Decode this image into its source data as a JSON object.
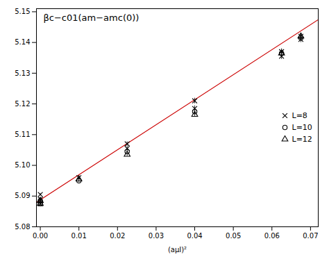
{
  "chart_data": {
    "type": "scatter",
    "title": "βc−c01(am−amc(0))",
    "xlabel": "(aμI)²",
    "xlim": [
      -0.001,
      0.072
    ],
    "ylim": [
      5.08,
      5.151
    ],
    "xticks": [
      {
        "value": 0.0,
        "label": "0.00"
      },
      0.01,
      0.02,
      0.03,
      0.04,
      0.05,
      0.06,
      0.07
    ],
    "yticks": [
      5.08,
      5.09,
      {
        "value": 5.1,
        "label": "5.10"
      },
      5.11,
      5.12,
      5.13,
      5.14,
      5.15
    ],
    "legend": "right",
    "series": [
      {
        "type": "line",
        "color": "#cc0000",
        "x": [
          -0.001,
          0.072
        ],
        "values": [
          5.0879857,
          5.1474296
        ]
      },
      {
        "name": "L=8",
        "type": "scatter",
        "marker": "x",
        "color": "black",
        "x": [
          0.0,
          0.0,
          0.0,
          0.01,
          0.0225,
          0.0225,
          0.04,
          0.04,
          0.0625,
          0.0625,
          0.0675,
          0.0675
        ],
        "values": [
          5.0905,
          5.089,
          5.0875,
          5.096,
          5.107,
          5.1055,
          5.121,
          5.1185,
          5.137,
          5.1355,
          5.142,
          5.141
        ],
        "errors": [
          0.0004,
          0.0004,
          0.0004,
          0.0007,
          0.0007,
          0.0007,
          0.0009,
          0.0009,
          0.001,
          0.001,
          0.001,
          0.001
        ]
      },
      {
        "name": "L=10",
        "type": "scatter",
        "marker": "circle",
        "color": "black",
        "x": [
          0.0,
          0.0,
          0.01,
          0.0225,
          0.04,
          0.0625,
          0.0675
        ],
        "values": [
          5.0885,
          5.0875,
          5.095,
          5.1045,
          5.1175,
          5.1365,
          5.1415
        ],
        "errors": [
          0.0004,
          0.0004,
          0.0005,
          0.0005,
          0.0007,
          0.001,
          0.001
        ]
      },
      {
        "name": "L=12",
        "type": "scatter",
        "marker": "triangle",
        "color": "black",
        "x": [
          0.0,
          0.0,
          0.01,
          0.0225,
          0.04,
          0.0625,
          0.0675
        ],
        "values": [
          5.0885,
          5.0875,
          5.0955,
          5.1035,
          5.1165,
          5.1365,
          5.142
        ],
        "errors": [
          0.0004,
          0.0004,
          0.0005,
          0.0005,
          0.0006,
          0.001,
          0.001
        ]
      }
    ]
  }
}
